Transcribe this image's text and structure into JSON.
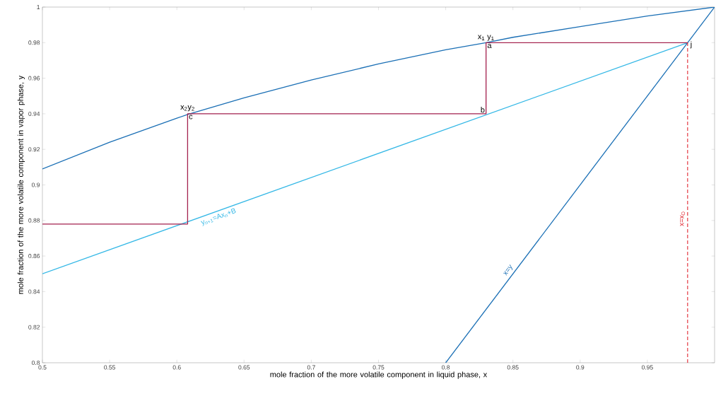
{
  "chart_data": {
    "type": "line",
    "xlabel": "mole fraction of the more volatile component in liquid phase, x",
    "ylabel": "mole fraction of the more volatile component in vapor phase, y",
    "xlim": [
      0.5,
      1
    ],
    "ylim": [
      0.8,
      1
    ],
    "xticks": [
      0.5,
      0.55,
      0.6,
      0.65,
      0.7,
      0.75,
      0.8,
      0.85,
      0.9,
      0.95
    ],
    "yticks": [
      0.8,
      0.82,
      0.84,
      0.86,
      0.88,
      0.9,
      0.92,
      0.94,
      0.96,
      0.98,
      1
    ],
    "grid": false,
    "marker": "none",
    "series": [
      {
        "color": "#1a6fb5",
        "x": [
          0.5,
          0.55,
          0.6,
          0.608,
          0.65,
          0.7,
          0.75,
          0.8,
          0.83,
          0.85,
          0.9,
          0.95,
          1
        ],
        "values": [
          0.909,
          0.924,
          0.9375,
          0.9396,
          0.949,
          0.959,
          0.968,
          0.976,
          0.98,
          0.983,
          0.989,
          0.995,
          1
        ]
      },
      {
        "name": "y$_{n+1}$=Ax$_{n}$+B",
        "color": "#35b8e6",
        "x": [
          0.5,
          0.98
        ],
        "values": [
          0.85,
          0.98
        ]
      },
      {
        "name": "x=y",
        "color": "#1a6fb5",
        "x": [
          0.8,
          1
        ],
        "values": [
          0.8,
          1
        ]
      },
      {
        "color": "#a3214e",
        "x": [
          0.5,
          0.608,
          0.608,
          0.83,
          0.83,
          0.98
        ],
        "values": [
          0.878,
          0.878,
          0.94,
          0.94,
          0.98,
          0.98
        ]
      },
      {
        "name": "x=x$_{D}$",
        "color": "#e0202a",
        "line_style": "dashed",
        "x": [
          0.98,
          0.98
        ],
        "values": [
          0.8,
          0.98
        ]
      }
    ],
    "annotations": [
      {
        "text": "x$_{1}$ y$_{1}$",
        "x": 0.83,
        "y": 0.98
      },
      {
        "text": "a",
        "x": 0.83,
        "y": 0.98
      },
      {
        "text": "b",
        "x": 0.83,
        "y": 0.94
      },
      {
        "text": "x$_{2}$y$_{2}$",
        "x": 0.608,
        "y": 0.94
      },
      {
        "text": "c",
        "x": 0.608,
        "y": 0.94
      },
      {
        "text": "j",
        "x": 0.98,
        "y": 0.98
      }
    ]
  }
}
